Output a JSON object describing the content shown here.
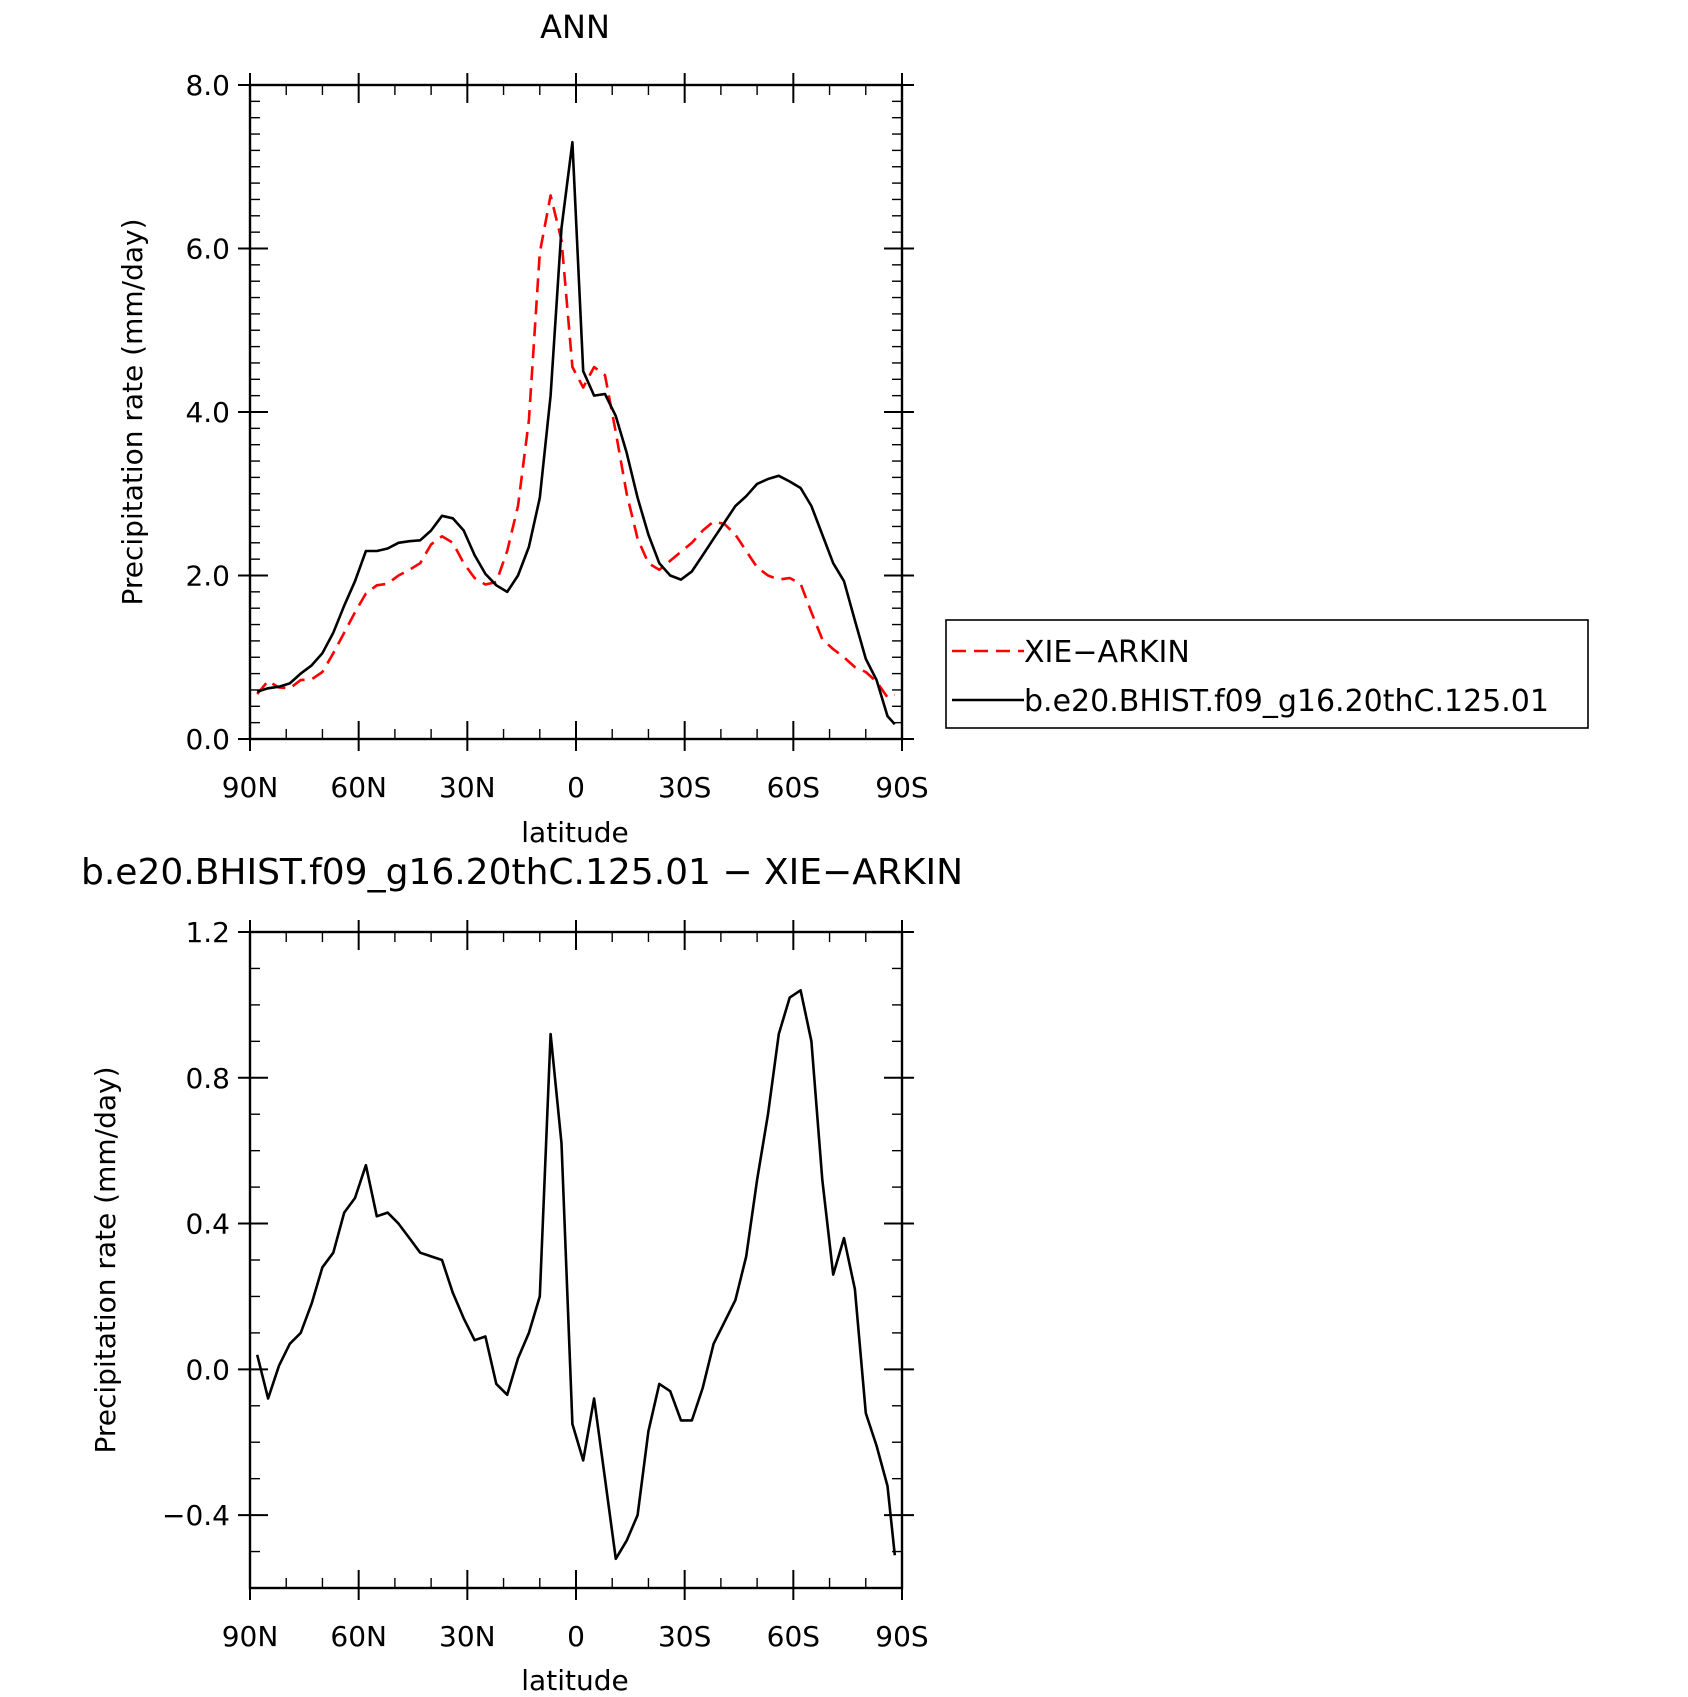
{
  "chart_data": [
    {
      "type": "line",
      "title": "ANN",
      "xlabel": "latitude",
      "ylabel": "Precipitation rate (mm/day)",
      "ylim": [
        0,
        8
      ],
      "xlim": [
        90,
        -90
      ],
      "x_ticks": [
        90,
        60,
        30,
        0,
        -30,
        -60,
        -90
      ],
      "x_tick_labels": [
        "90N",
        "60N",
        "30N",
        "0",
        "30S",
        "60S",
        "90S"
      ],
      "y_ticks": [
        0,
        2,
        4,
        6,
        8
      ],
      "y_tick_labels": [
        "0.0",
        "2.0",
        "4.0",
        "6.0",
        "8.0"
      ],
      "legend_position": "right",
      "grid": false,
      "series": [
        {
          "name": "XIE−ARKIN",
          "color": "#ff0000",
          "dash": "dashed",
          "x": [
            88,
            85,
            82,
            79,
            76,
            73,
            70,
            67,
            64,
            61,
            58,
            55,
            52,
            49,
            46,
            43,
            40,
            37,
            34,
            31,
            28,
            25,
            22,
            19,
            16,
            13,
            10,
            7,
            4,
            1,
            -2,
            -5,
            -8,
            -11,
            -14,
            -17,
            -20,
            -23,
            -26,
            -29,
            -32,
            -35,
            -38,
            -41,
            -44,
            -47,
            -50,
            -53,
            -56,
            -59,
            -62,
            -65,
            -68,
            -71,
            -74,
            -77,
            -80,
            -83,
            -86,
            -88
          ],
          "y": [
            0.55,
            0.71,
            0.63,
            0.62,
            0.72,
            0.73,
            0.82,
            1.05,
            1.3,
            1.55,
            1.78,
            1.88,
            1.9,
            2.0,
            2.07,
            2.15,
            2.38,
            2.48,
            2.4,
            2.15,
            1.97,
            1.89,
            1.92,
            2.3,
            2.85,
            3.9,
            5.95,
            6.65,
            6.1,
            4.55,
            4.3,
            4.55,
            4.45,
            3.75,
            3.0,
            2.45,
            2.15,
            2.07,
            2.18,
            2.29,
            2.4,
            2.55,
            2.66,
            2.63,
            2.5,
            2.3,
            2.1,
            2.0,
            1.95,
            1.97,
            1.9,
            1.55,
            1.22,
            1.1,
            1.0,
            0.88,
            0.82,
            0.7,
            0.51,
            0.54
          ]
        },
        {
          "name": "b.e20.BHIST.f09_g16.20thC.125.01",
          "color": "#000000",
          "dash": "solid",
          "x": [
            88,
            85,
            82,
            79,
            76,
            73,
            70,
            67,
            64,
            61,
            58,
            55,
            52,
            49,
            46,
            43,
            40,
            37,
            34,
            31,
            28,
            25,
            22,
            19,
            16,
            13,
            10,
            7,
            4,
            1,
            -2,
            -5,
            -8,
            -11,
            -14,
            -17,
            -20,
            -23,
            -26,
            -29,
            -32,
            -35,
            -38,
            -41,
            -44,
            -47,
            -50,
            -53,
            -56,
            -59,
            -62,
            -65,
            -68,
            -71,
            -74,
            -77,
            -80,
            -83,
            -86,
            -88
          ],
          "y": [
            0.58,
            0.62,
            0.64,
            0.68,
            0.8,
            0.9,
            1.05,
            1.3,
            1.63,
            1.93,
            2.3,
            2.3,
            2.33,
            2.4,
            2.42,
            2.43,
            2.55,
            2.73,
            2.7,
            2.55,
            2.25,
            2.02,
            1.88,
            1.8,
            2.0,
            2.35,
            2.95,
            4.2,
            6.25,
            7.3,
            4.5,
            4.2,
            4.22,
            3.95,
            3.5,
            2.95,
            2.5,
            2.15,
            2.0,
            1.95,
            2.05,
            2.25,
            2.45,
            2.65,
            2.85,
            2.97,
            3.12,
            3.18,
            3.22,
            3.15,
            3.07,
            2.85,
            2.5,
            2.15,
            1.93,
            1.45,
            0.98,
            0.72,
            0.28,
            0.18
          ]
        }
      ]
    },
    {
      "type": "line",
      "title": "b.e20.BHIST.f09_g16.20thC.125.01 − XIE−ARKIN",
      "xlabel": "latitude",
      "ylabel": "Precipitation rate (mm/day)",
      "ylim": [
        -0.6,
        1.2
      ],
      "xlim": [
        90,
        -90
      ],
      "x_ticks": [
        90,
        60,
        30,
        0,
        -30,
        -60,
        -90
      ],
      "x_tick_labels": [
        "90N",
        "60N",
        "30N",
        "0",
        "30S",
        "60S",
        "90S"
      ],
      "y_ticks": [
        -0.4,
        0,
        0.4,
        0.8,
        1.2
      ],
      "y_tick_labels": [
        "−0.4",
        "0.0",
        "0.4",
        "0.8",
        "1.2"
      ],
      "grid": false,
      "series": [
        {
          "color": "#000000",
          "dash": "solid",
          "x": [
            88,
            85,
            82,
            79,
            76,
            73,
            70,
            67,
            64,
            61,
            58,
            55,
            52,
            49,
            46,
            43,
            40,
            37,
            34,
            31,
            28,
            25,
            22,
            19,
            16,
            13,
            10,
            7,
            4,
            1,
            -2,
            -5,
            -8,
            -11,
            -14,
            -17,
            -20,
            -23,
            -26,
            -29,
            -32,
            -35,
            -38,
            -41,
            -44,
            -47,
            -50,
            -53,
            -56,
            -59,
            -62,
            -65,
            -68,
            -71,
            -74,
            -77,
            -80,
            -83,
            -86,
            -88
          ],
          "y": [
            0.04,
            -0.08,
            0.01,
            0.07,
            0.1,
            0.18,
            0.28,
            0.32,
            0.43,
            0.47,
            0.56,
            0.42,
            0.43,
            0.4,
            0.36,
            0.32,
            0.31,
            0.3,
            0.21,
            0.14,
            0.08,
            0.09,
            -0.04,
            -0.07,
            0.03,
            0.1,
            0.2,
            0.92,
            0.62,
            -0.15,
            -0.25,
            -0.08,
            -0.3,
            -0.52,
            -0.47,
            -0.4,
            -0.17,
            -0.04,
            -0.06,
            -0.14,
            -0.14,
            -0.05,
            0.07,
            0.13,
            0.19,
            0.31,
            0.52,
            0.7,
            0.92,
            1.02,
            1.04,
            0.9,
            0.52,
            0.26,
            0.36,
            0.22,
            -0.12,
            -0.21,
            -0.32,
            -0.51
          ]
        }
      ]
    }
  ]
}
